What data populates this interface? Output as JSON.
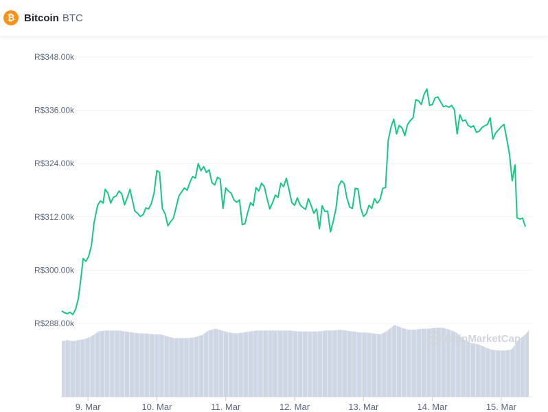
{
  "header": {
    "icon": "bitcoin-icon",
    "icon_glyph": "₿",
    "name": "Bitcoin",
    "symbol": "BTC",
    "icon_color": "#f7931a"
  },
  "watermark": "CoinMarketCap",
  "colors": {
    "line": "#16c784",
    "volume": "#cfd6e4",
    "grid": "#eff2f5",
    "text": "#58667e"
  },
  "chart_data": {
    "type": "line",
    "title": "",
    "xlabel": "",
    "ylabel": "",
    "ylim": [
      288000,
      348000
    ],
    "y_ticks": [
      "R$348.00k",
      "R$336.00k",
      "R$324.00k",
      "R$312.00k",
      "R$300.00k",
      "R$288.00k"
    ],
    "y_tick_values": [
      348000,
      336000,
      324000,
      312000,
      300000,
      288000
    ],
    "x_ticks": [
      "9. Mar",
      "10. Mar",
      "11. Mar",
      "12. Mar",
      "13. Mar",
      "14. Mar",
      "15. Mar"
    ],
    "x_tick_values": [
      1,
      2,
      3,
      4,
      5,
      6,
      7
    ],
    "x_range": [
      0.6,
      7.4
    ],
    "grid": true,
    "series": [
      {
        "values": [
          [
            0.62,
            290800
          ],
          [
            0.66,
            290400
          ],
          [
            0.7,
            290200
          ],
          [
            0.74,
            290500
          ],
          [
            0.78,
            290000
          ],
          [
            0.82,
            291200
          ],
          [
            0.86,
            293600
          ],
          [
            0.9,
            298500
          ],
          [
            0.93,
            302600
          ],
          [
            0.97,
            302000
          ],
          [
            1.01,
            303100
          ],
          [
            1.05,
            305500
          ],
          [
            1.09,
            310800
          ],
          [
            1.14,
            314600
          ],
          [
            1.18,
            315600
          ],
          [
            1.22,
            315100
          ],
          [
            1.25,
            318200
          ],
          [
            1.29,
            317300
          ],
          [
            1.33,
            315100
          ],
          [
            1.37,
            316400
          ],
          [
            1.41,
            316700
          ],
          [
            1.45,
            317800
          ],
          [
            1.49,
            317200
          ],
          [
            1.53,
            314700
          ],
          [
            1.57,
            316300
          ],
          [
            1.61,
            318200
          ],
          [
            1.64,
            316100
          ],
          [
            1.68,
            313300
          ],
          [
            1.72,
            312800
          ],
          [
            1.76,
            312100
          ],
          [
            1.8,
            312500
          ],
          [
            1.84,
            314000
          ],
          [
            1.88,
            313800
          ],
          [
            1.92,
            315000
          ],
          [
            1.96,
            317400
          ],
          [
            2.0,
            322400
          ],
          [
            2.04,
            322000
          ],
          [
            2.08,
            313900
          ],
          [
            2.12,
            312700
          ],
          [
            2.16,
            310000
          ],
          [
            2.2,
            310900
          ],
          [
            2.24,
            311700
          ],
          [
            2.28,
            314200
          ],
          [
            2.32,
            316700
          ],
          [
            2.36,
            317600
          ],
          [
            2.4,
            318500
          ],
          [
            2.44,
            318000
          ],
          [
            2.48,
            319800
          ],
          [
            2.52,
            321100
          ],
          [
            2.56,
            320700
          ],
          [
            2.6,
            324000
          ],
          [
            2.64,
            322400
          ],
          [
            2.68,
            323300
          ],
          [
            2.72,
            322000
          ],
          [
            2.76,
            322600
          ],
          [
            2.8,
            319700
          ],
          [
            2.84,
            319200
          ],
          [
            2.88,
            320900
          ],
          [
            2.92,
            320500
          ],
          [
            2.96,
            313900
          ],
          [
            3.0,
            318500
          ],
          [
            3.04,
            317800
          ],
          [
            3.08,
            317300
          ],
          [
            3.12,
            315800
          ],
          [
            3.16,
            315300
          ],
          [
            3.2,
            315800
          ],
          [
            3.24,
            310200
          ],
          [
            3.28,
            310500
          ],
          [
            3.32,
            313000
          ],
          [
            3.36,
            315200
          ],
          [
            3.4,
            314500
          ],
          [
            3.44,
            318600
          ],
          [
            3.48,
            317800
          ],
          [
            3.52,
            319600
          ],
          [
            3.56,
            318800
          ],
          [
            3.6,
            316100
          ],
          [
            3.64,
            313800
          ],
          [
            3.68,
            315200
          ],
          [
            3.72,
            316900
          ],
          [
            3.76,
            316400
          ],
          [
            3.8,
            319600
          ],
          [
            3.84,
            318800
          ],
          [
            3.88,
            320700
          ],
          [
            3.92,
            318000
          ],
          [
            3.96,
            315200
          ],
          [
            4.0,
            314600
          ],
          [
            4.04,
            316300
          ],
          [
            4.08,
            314700
          ],
          [
            4.12,
            314100
          ],
          [
            4.16,
            313700
          ],
          [
            4.2,
            316100
          ],
          [
            4.24,
            314500
          ],
          [
            4.28,
            312800
          ],
          [
            4.32,
            313800
          ],
          [
            4.36,
            309300
          ],
          [
            4.4,
            314500
          ],
          [
            4.44,
            313200
          ],
          [
            4.48,
            313300
          ],
          [
            4.52,
            308600
          ],
          [
            4.56,
            311000
          ],
          [
            4.6,
            313800
          ],
          [
            4.64,
            319000
          ],
          [
            4.68,
            320100
          ],
          [
            4.72,
            319500
          ],
          [
            4.76,
            316200
          ],
          [
            4.8,
            314200
          ],
          [
            4.84,
            313900
          ],
          [
            4.88,
            318400
          ],
          [
            4.92,
            318300
          ],
          [
            4.96,
            314000
          ],
          [
            5.0,
            312100
          ],
          [
            5.04,
            312700
          ],
          [
            5.08,
            314600
          ],
          [
            5.12,
            313900
          ],
          [
            5.16,
            316100
          ],
          [
            5.2,
            315100
          ],
          [
            5.24,
            315900
          ],
          [
            5.28,
            318400
          ],
          [
            5.32,
            318600
          ],
          [
            5.36,
            329300
          ],
          [
            5.4,
            332200
          ],
          [
            5.44,
            334000
          ],
          [
            5.48,
            330700
          ],
          [
            5.52,
            332600
          ],
          [
            5.56,
            332000
          ],
          [
            5.6,
            330300
          ],
          [
            5.64,
            332800
          ],
          [
            5.68,
            333700
          ],
          [
            5.72,
            334300
          ],
          [
            5.76,
            338400
          ],
          [
            5.8,
            338100
          ],
          [
            5.84,
            337300
          ],
          [
            5.88,
            339600
          ],
          [
            5.92,
            340800
          ],
          [
            5.96,
            337100
          ],
          [
            6.0,
            337300
          ],
          [
            6.04,
            338800
          ],
          [
            6.08,
            339000
          ],
          [
            6.12,
            337900
          ],
          [
            6.16,
            336800
          ],
          [
            6.2,
            337000
          ],
          [
            6.24,
            336700
          ],
          [
            6.28,
            337100
          ],
          [
            6.32,
            336100
          ],
          [
            6.36,
            330700
          ],
          [
            6.4,
            335000
          ],
          [
            6.44,
            333600
          ],
          [
            6.48,
            333800
          ],
          [
            6.52,
            332600
          ],
          [
            6.56,
            332200
          ],
          [
            6.6,
            332500
          ],
          [
            6.64,
            331000
          ],
          [
            6.68,
            331300
          ],
          [
            6.72,
            332100
          ],
          [
            6.76,
            332500
          ],
          [
            6.8,
            332800
          ],
          [
            6.84,
            334300
          ],
          [
            6.88,
            329500
          ],
          [
            6.92,
            330900
          ],
          [
            6.96,
            331600
          ],
          [
            7.0,
            332300
          ],
          [
            7.04,
            332800
          ],
          [
            7.08,
            329600
          ],
          [
            7.12,
            326100
          ],
          [
            7.16,
            320100
          ],
          [
            7.2,
            323700
          ],
          [
            7.23,
            311800
          ],
          [
            7.27,
            311500
          ],
          [
            7.31,
            311700
          ],
          [
            7.35,
            309800
          ]
        ]
      }
    ]
  },
  "volume_data": {
    "ylim": [
      0,
      100
    ],
    "values": [
      [
        0.62,
        59
      ],
      [
        0.7,
        60
      ],
      [
        0.78,
        59
      ],
      [
        0.86,
        60
      ],
      [
        0.95,
        61
      ],
      [
        1.05,
        64
      ],
      [
        1.15,
        69
      ],
      [
        1.25,
        70
      ],
      [
        1.35,
        70
      ],
      [
        1.45,
        70
      ],
      [
        1.55,
        69
      ],
      [
        1.65,
        68
      ],
      [
        1.75,
        67
      ],
      [
        1.85,
        67
      ],
      [
        1.95,
        66
      ],
      [
        2.05,
        66
      ],
      [
        2.15,
        64
      ],
      [
        2.25,
        62
      ],
      [
        2.35,
        62
      ],
      [
        2.45,
        62
      ],
      [
        2.55,
        63
      ],
      [
        2.65,
        65
      ],
      [
        2.75,
        70
      ],
      [
        2.85,
        72
      ],
      [
        2.95,
        70
      ],
      [
        3.05,
        68
      ],
      [
        3.15,
        67
      ],
      [
        3.25,
        68
      ],
      [
        3.35,
        69
      ],
      [
        3.45,
        70
      ],
      [
        3.55,
        70
      ],
      [
        3.65,
        70
      ],
      [
        3.75,
        70
      ],
      [
        3.85,
        70
      ],
      [
        3.95,
        70
      ],
      [
        4.05,
        69
      ],
      [
        4.15,
        69
      ],
      [
        4.25,
        69
      ],
      [
        4.35,
        69
      ],
      [
        4.45,
        70
      ],
      [
        4.55,
        70
      ],
      [
        4.65,
        71
      ],
      [
        4.75,
        70
      ],
      [
        4.85,
        69
      ],
      [
        4.95,
        68
      ],
      [
        5.05,
        68
      ],
      [
        5.15,
        67
      ],
      [
        5.25,
        66
      ],
      [
        5.35,
        70
      ],
      [
        5.45,
        76
      ],
      [
        5.55,
        73
      ],
      [
        5.65,
        71
      ],
      [
        5.75,
        71
      ],
      [
        5.85,
        72
      ],
      [
        5.95,
        72
      ],
      [
        6.05,
        73
      ],
      [
        6.15,
        73
      ],
      [
        6.25,
        71
      ],
      [
        6.35,
        68
      ],
      [
        6.45,
        61
      ],
      [
        6.55,
        57
      ],
      [
        6.65,
        56
      ],
      [
        6.75,
        53
      ],
      [
        6.85,
        50
      ],
      [
        6.95,
        49
      ],
      [
        7.05,
        49
      ],
      [
        7.15,
        50
      ],
      [
        7.25,
        60
      ],
      [
        7.35,
        66
      ],
      [
        7.4,
        70
      ]
    ]
  }
}
